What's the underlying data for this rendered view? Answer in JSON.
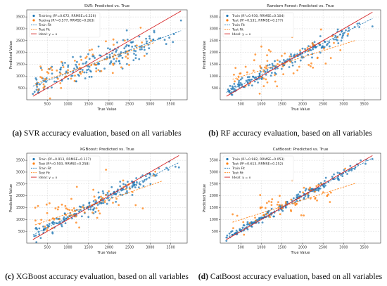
{
  "panels": [
    {
      "id": "a",
      "caption_letter": "(a)",
      "caption_text": " SVR accuracy evaluation, based on all variables",
      "chart_data": {
        "type": "scatter",
        "title": "SVR: Predicted vs. True",
        "xlabel": "True Value",
        "ylabel": "Predicted Value",
        "xlim": [
          0,
          3900
        ],
        "ylim": [
          0,
          3800
        ],
        "xticks": [
          500,
          1000,
          1500,
          2000,
          2500,
          3000,
          3500
        ],
        "yticks": [
          500,
          1000,
          1500,
          2000,
          2500,
          3000,
          3500
        ],
        "legend_position": "top-left",
        "series": [
          {
            "name": "Training (R²=0.672, RRMSE=0.226)",
            "kind": "scatter",
            "color": "#1f77b4",
            "slope": 0.65,
            "intercept": 480,
            "spread": 320,
            "xmin": 150,
            "xmax": 3750,
            "count": 170,
            "seed": 11,
            "points": [
              [
                150,
                250
              ],
              [
                250,
                550
              ],
              [
                3750,
                3350
              ],
              [
                3100,
                2850
              ]
            ]
          },
          {
            "name": "Testing (R²=0.577, RRMSE=0.263)",
            "kind": "scatter",
            "color": "#ff7f0e",
            "slope": 0.6,
            "intercept": 560,
            "spread": 330,
            "xmin": 200,
            "xmax": 3100,
            "count": 70,
            "seed": 23,
            "points": []
          },
          {
            "name": "Train Fit",
            "kind": "fit",
            "color": "#1f77b4",
            "dash": true,
            "x": [
              150,
              3750
            ],
            "y": [
              578,
              2918
            ]
          },
          {
            "name": "Test Fit",
            "kind": "fit",
            "color": "#ff7f0e",
            "dash": true,
            "x": [
              200,
              3100
            ],
            "y": [
              680,
              2420
            ]
          },
          {
            "name": "Ideal: y = x",
            "kind": "ideal",
            "color": "#d62728",
            "x": [
              150,
              3750
            ],
            "y": [
              150,
              3750
            ]
          }
        ]
      }
    },
    {
      "id": "b",
      "caption_letter": "(b)",
      "caption_text": " RF accuracy evaluation, based on all variables",
      "chart_data": {
        "type": "scatter",
        "title": "Random Forest: Predicted vs. True",
        "xlabel": "True Value",
        "ylabel": "Predicted Value",
        "xlim": [
          0,
          3900
        ],
        "ylim": [
          0,
          3800
        ],
        "xticks": [
          500,
          1000,
          1500,
          2000,
          2500,
          3000,
          3500
        ],
        "yticks": [
          500,
          1000,
          1500,
          2000,
          2500,
          3000,
          3500
        ],
        "legend_position": "top-left",
        "series": [
          {
            "name": "Train  (R²=0.930, RRMSE=0.104)",
            "kind": "scatter",
            "color": "#1f77b4",
            "slope": 0.88,
            "intercept": 180,
            "spread": 150,
            "xmin": 150,
            "xmax": 3700,
            "count": 180,
            "seed": 37,
            "points": [
              [
                3700,
                3100
              ]
            ]
          },
          {
            "name": "Test  (R²=0.531, RRMSE=0.277)",
            "kind": "scatter",
            "color": "#ff7f0e",
            "slope": 0.55,
            "intercept": 700,
            "spread": 380,
            "xmin": 300,
            "xmax": 3200,
            "count": 70,
            "seed": 41,
            "points": [
              [
                1750,
                2650
              ],
              [
                1000,
                2250
              ]
            ]
          },
          {
            "name": "Train Fit",
            "kind": "fit",
            "color": "#1f77b4",
            "dash": true,
            "x": [
              150,
              3700
            ],
            "y": [
              312,
              3436
            ]
          },
          {
            "name": "Test Fit",
            "kind": "fit",
            "color": "#ff7f0e",
            "dash": true,
            "x": [
              300,
              3300
            ],
            "y": [
              865,
              2515
            ]
          },
          {
            "name": "Ideal: y = x",
            "kind": "ideal",
            "color": "#d62728",
            "x": [
              150,
              3700
            ],
            "y": [
              150,
              3700
            ]
          }
        ]
      }
    },
    {
      "id": "c",
      "caption_letter": "(c)",
      "caption_text": " XGBoost accuracy evaluation, based on all variables",
      "chart_data": {
        "type": "scatter",
        "title": "XGBoost: Predicted vs. True",
        "xlabel": "True Value",
        "ylabel": "Predicted Value",
        "xlim": [
          0,
          3900
        ],
        "ylim": [
          0,
          3800
        ],
        "xticks": [
          500,
          1000,
          1500,
          2000,
          2500,
          3000,
          3500
        ],
        "yticks": [
          500,
          1000,
          1500,
          2000,
          2500,
          3000,
          3500
        ],
        "legend_position": "top-left",
        "series": [
          {
            "name": "Train  (R²=0.913, RRMSE=0.117)",
            "kind": "scatter",
            "color": "#1f77b4",
            "slope": 0.86,
            "intercept": 220,
            "spread": 170,
            "xmin": 150,
            "xmax": 3700,
            "count": 180,
            "seed": 53,
            "points": [
              [
                3700,
                3200
              ]
            ]
          },
          {
            "name": "Test  (R²=0.593, RRMSE=0.258)",
            "kind": "scatter",
            "color": "#ff7f0e",
            "slope": 0.6,
            "intercept": 650,
            "spread": 340,
            "xmin": 200,
            "xmax": 3200,
            "count": 70,
            "seed": 59,
            "points": []
          },
          {
            "name": "Train Fit",
            "kind": "fit",
            "color": "#1f77b4",
            "dash": true,
            "x": [
              150,
              3700
            ],
            "y": [
              349,
              3402
            ]
          },
          {
            "name": "Test Fit",
            "kind": "fit",
            "color": "#ff7f0e",
            "dash": true,
            "x": [
              200,
              3300
            ],
            "y": [
              770,
              2630
            ]
          },
          {
            "name": "Ideal: y = x",
            "kind": "ideal",
            "color": "#d62728",
            "x": [
              150,
              3700
            ],
            "y": [
              150,
              3700
            ]
          }
        ]
      }
    },
    {
      "id": "d",
      "caption_letter": "(d)",
      "caption_text": " CatBoost accuracy evaluation, based on all variables",
      "chart_data": {
        "type": "scatter",
        "title": "CatBoost: Predicted vs. True",
        "xlabel": "True Value",
        "ylabel": "Predicted Value",
        "xlim": [
          0,
          3900
        ],
        "ylim": [
          0,
          3800
        ],
        "xticks": [
          500,
          1000,
          1500,
          2000,
          2500,
          3000,
          3500
        ],
        "yticks": [
          500,
          1000,
          1500,
          2000,
          2500,
          3000,
          3500
        ],
        "legend_position": "top-left",
        "series": [
          {
            "name": "Train  (R²=0.982, RRMSE=0.053)",
            "kind": "scatter",
            "color": "#1f77b4",
            "slope": 0.95,
            "intercept": 80,
            "spread": 90,
            "xmin": 150,
            "xmax": 3700,
            "count": 190,
            "seed": 67,
            "points": [
              [
                3700,
                3550
              ]
            ]
          },
          {
            "name": "Test  (R²=0.613, RRMSE=0.252)",
            "kind": "scatter",
            "color": "#ff7f0e",
            "slope": 0.55,
            "intercept": 720,
            "spread": 330,
            "xmin": 300,
            "xmax": 3200,
            "count": 65,
            "seed": 71,
            "points": [
              [
                1750,
                2650
              ]
            ]
          },
          {
            "name": "Train Fit",
            "kind": "fit",
            "color": "#1f77b4",
            "dash": true,
            "x": [
              150,
              3700
            ],
            "y": [
              223,
              3595
            ]
          },
          {
            "name": "Test Fit",
            "kind": "fit",
            "color": "#ff7f0e",
            "dash": true,
            "x": [
              300,
              3300
            ],
            "y": [
              885,
              2535
            ]
          },
          {
            "name": "Ideal: y = x",
            "kind": "ideal",
            "color": "#d62728",
            "x": [
              150,
              3700
            ],
            "y": [
              150,
              3700
            ]
          }
        ]
      }
    }
  ]
}
